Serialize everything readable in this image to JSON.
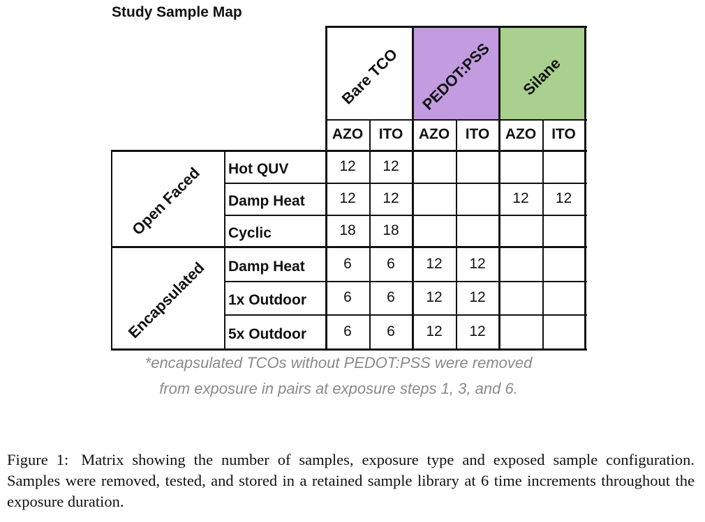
{
  "title": "Study Sample Map",
  "groups": [
    {
      "label": "Bare TCO",
      "color": "#ffffff"
    },
    {
      "label": "PEDOT:PSS",
      "color": "#c29be0"
    },
    {
      "label": "Silane",
      "color": "#a9d08e"
    }
  ],
  "subheaders": [
    "AZO",
    "ITO",
    "AZO",
    "ITO",
    "AZO",
    "ITO"
  ],
  "sections": [
    {
      "label": "Open Faced"
    },
    {
      "label": "Encapsulated"
    }
  ],
  "rows": [
    {
      "label": "Hot QUV",
      "cells": [
        "12",
        "12",
        "",
        "",
        "",
        ""
      ]
    },
    {
      "label": "Damp Heat",
      "cells": [
        "12",
        "12",
        "",
        "",
        "12",
        "12"
      ]
    },
    {
      "label": "Cyclic",
      "cells": [
        "18",
        "18",
        "",
        "",
        "",
        ""
      ]
    },
    {
      "label": "Damp Heat",
      "cells": [
        "6",
        "6",
        "12",
        "12",
        "",
        ""
      ]
    },
    {
      "label": "1x Outdoor",
      "cells": [
        "6",
        "6",
        "12",
        "12",
        "",
        ""
      ]
    },
    {
      "label": "5x Outdoor",
      "cells": [
        "6",
        "6",
        "12",
        "12",
        "",
        ""
      ]
    }
  ],
  "note_line1": "*encapsulated TCOs without PEDOT:PSS were removed",
  "note_line2": "from exposure in pairs at exposure steps 1, 3, and 6.",
  "caption_label": "Figure 1:",
  "caption_text": "Matrix showing the number of samples, exposure type and exposed sample configuration. Samples were removed, tested, and stored in a retained sample library at 6 time increments throughout the exposure duration."
}
